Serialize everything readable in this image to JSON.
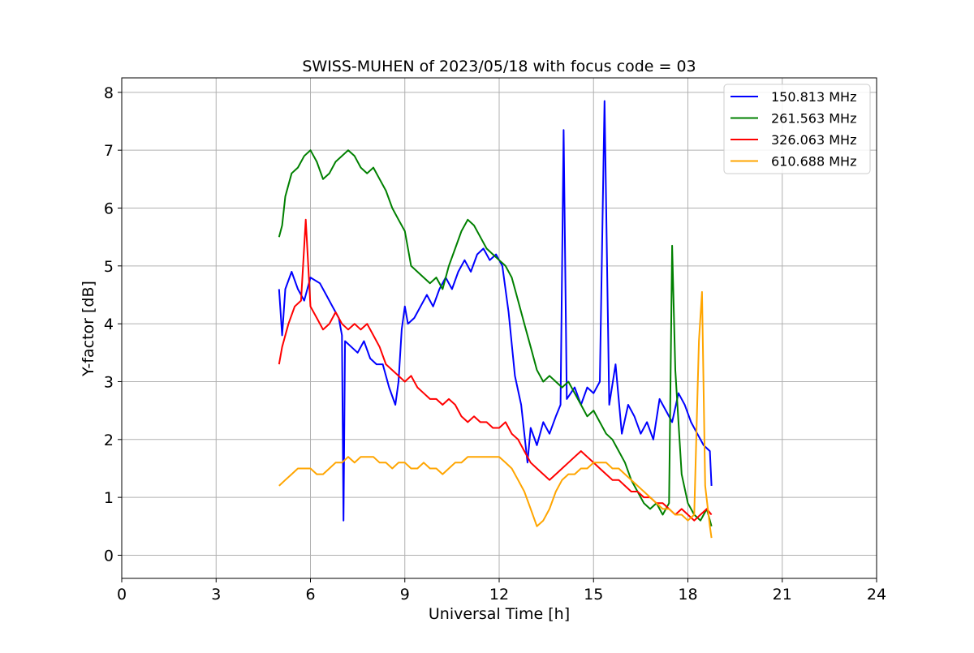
{
  "chart_data": {
    "type": "line",
    "title": "SWISS-MUHEN of 2023/05/18 with focus code = 03",
    "xlabel": "Universal Time [h]",
    "ylabel": "Y-factor [dB]",
    "xlim": [
      0,
      24
    ],
    "ylim": [
      -0.4,
      8.25
    ],
    "xticks": [
      0,
      3,
      6,
      9,
      12,
      15,
      18,
      21,
      24
    ],
    "yticks": [
      0,
      1,
      2,
      3,
      4,
      5,
      6,
      7,
      8
    ],
    "grid": true,
    "legend_position": "top-right",
    "series": [
      {
        "name": "150.813 MHz",
        "color": "#0000ff",
        "points": [
          [
            5.0,
            4.6
          ],
          [
            5.1,
            3.8
          ],
          [
            5.2,
            4.6
          ],
          [
            5.4,
            4.9
          ],
          [
            5.6,
            4.6
          ],
          [
            5.8,
            4.4
          ],
          [
            6.0,
            4.8
          ],
          [
            6.3,
            4.7
          ],
          [
            6.5,
            4.5
          ],
          [
            6.7,
            4.3
          ],
          [
            6.9,
            4.1
          ],
          [
            7.0,
            3.8
          ],
          [
            7.05,
            0.6
          ],
          [
            7.1,
            3.7
          ],
          [
            7.3,
            3.6
          ],
          [
            7.5,
            3.5
          ],
          [
            7.7,
            3.7
          ],
          [
            7.9,
            3.4
          ],
          [
            8.1,
            3.3
          ],
          [
            8.3,
            3.3
          ],
          [
            8.5,
            2.9
          ],
          [
            8.7,
            2.6
          ],
          [
            8.8,
            3.0
          ],
          [
            8.9,
            3.9
          ],
          [
            9.0,
            4.3
          ],
          [
            9.1,
            4.0
          ],
          [
            9.3,
            4.1
          ],
          [
            9.5,
            4.3
          ],
          [
            9.7,
            4.5
          ],
          [
            9.9,
            4.3
          ],
          [
            10.1,
            4.6
          ],
          [
            10.3,
            4.8
          ],
          [
            10.5,
            4.6
          ],
          [
            10.7,
            4.9
          ],
          [
            10.9,
            5.1
          ],
          [
            11.1,
            4.9
          ],
          [
            11.3,
            5.2
          ],
          [
            11.5,
            5.3
          ],
          [
            11.7,
            5.1
          ],
          [
            11.9,
            5.2
          ],
          [
            12.1,
            5.0
          ],
          [
            12.3,
            4.2
          ],
          [
            12.5,
            3.1
          ],
          [
            12.7,
            2.6
          ],
          [
            12.9,
            1.6
          ],
          [
            13.0,
            2.2
          ],
          [
            13.2,
            1.9
          ],
          [
            13.4,
            2.3
          ],
          [
            13.6,
            2.1
          ],
          [
            13.8,
            2.4
          ],
          [
            13.95,
            2.6
          ],
          [
            14.05,
            7.35
          ],
          [
            14.15,
            2.7
          ],
          [
            14.4,
            2.9
          ],
          [
            14.6,
            2.6
          ],
          [
            14.8,
            2.9
          ],
          [
            15.0,
            2.8
          ],
          [
            15.2,
            3.0
          ],
          [
            15.35,
            7.85
          ],
          [
            15.5,
            2.6
          ],
          [
            15.7,
            3.3
          ],
          [
            15.9,
            2.1
          ],
          [
            16.1,
            2.6
          ],
          [
            16.3,
            2.4
          ],
          [
            16.5,
            2.1
          ],
          [
            16.7,
            2.3
          ],
          [
            16.9,
            2.0
          ],
          [
            17.1,
            2.7
          ],
          [
            17.3,
            2.5
          ],
          [
            17.5,
            2.3
          ],
          [
            17.7,
            2.8
          ],
          [
            17.9,
            2.6
          ],
          [
            18.1,
            2.3
          ],
          [
            18.3,
            2.1
          ],
          [
            18.5,
            1.9
          ],
          [
            18.7,
            1.8
          ],
          [
            18.75,
            1.2
          ]
        ]
      },
      {
        "name": "261.563 MHz",
        "color": "#008000",
        "points": [
          [
            5.0,
            5.5
          ],
          [
            5.1,
            5.7
          ],
          [
            5.2,
            6.2
          ],
          [
            5.4,
            6.6
          ],
          [
            5.6,
            6.7
          ],
          [
            5.8,
            6.9
          ],
          [
            6.0,
            7.0
          ],
          [
            6.2,
            6.8
          ],
          [
            6.4,
            6.5
          ],
          [
            6.6,
            6.6
          ],
          [
            6.8,
            6.8
          ],
          [
            7.0,
            6.9
          ],
          [
            7.2,
            7.0
          ],
          [
            7.4,
            6.9
          ],
          [
            7.6,
            6.7
          ],
          [
            7.8,
            6.6
          ],
          [
            8.0,
            6.7
          ],
          [
            8.2,
            6.5
          ],
          [
            8.4,
            6.3
          ],
          [
            8.6,
            6.0
          ],
          [
            8.8,
            5.8
          ],
          [
            9.0,
            5.6
          ],
          [
            9.2,
            5.0
          ],
          [
            9.4,
            4.9
          ],
          [
            9.6,
            4.8
          ],
          [
            9.8,
            4.7
          ],
          [
            10.0,
            4.8
          ],
          [
            10.2,
            4.6
          ],
          [
            10.4,
            5.0
          ],
          [
            10.6,
            5.3
          ],
          [
            10.8,
            5.6
          ],
          [
            11.0,
            5.8
          ],
          [
            11.2,
            5.7
          ],
          [
            11.4,
            5.5
          ],
          [
            11.6,
            5.3
          ],
          [
            11.8,
            5.2
          ],
          [
            12.0,
            5.1
          ],
          [
            12.2,
            5.0
          ],
          [
            12.4,
            4.8
          ],
          [
            12.6,
            4.4
          ],
          [
            12.8,
            4.0
          ],
          [
            13.0,
            3.6
          ],
          [
            13.2,
            3.2
          ],
          [
            13.4,
            3.0
          ],
          [
            13.6,
            3.1
          ],
          [
            13.8,
            3.0
          ],
          [
            14.0,
            2.9
          ],
          [
            14.2,
            3.0
          ],
          [
            14.4,
            2.8
          ],
          [
            14.6,
            2.6
          ],
          [
            14.8,
            2.4
          ],
          [
            15.0,
            2.5
          ],
          [
            15.2,
            2.3
          ],
          [
            15.4,
            2.1
          ],
          [
            15.6,
            2.0
          ],
          [
            15.8,
            1.8
          ],
          [
            16.0,
            1.6
          ],
          [
            16.2,
            1.3
          ],
          [
            16.4,
            1.1
          ],
          [
            16.6,
            0.9
          ],
          [
            16.8,
            0.8
          ],
          [
            17.0,
            0.9
          ],
          [
            17.2,
            0.7
          ],
          [
            17.4,
            0.9
          ],
          [
            17.5,
            5.35
          ],
          [
            17.6,
            3.2
          ],
          [
            17.8,
            1.4
          ],
          [
            18.0,
            0.9
          ],
          [
            18.2,
            0.7
          ],
          [
            18.4,
            0.6
          ],
          [
            18.6,
            0.8
          ],
          [
            18.75,
            0.5
          ]
        ]
      },
      {
        "name": "326.063 MHz",
        "color": "#ff0000",
        "points": [
          [
            5.0,
            3.3
          ],
          [
            5.1,
            3.6
          ],
          [
            5.3,
            4.0
          ],
          [
            5.5,
            4.3
          ],
          [
            5.7,
            4.4
          ],
          [
            5.85,
            5.8
          ],
          [
            6.0,
            4.3
          ],
          [
            6.2,
            4.1
          ],
          [
            6.4,
            3.9
          ],
          [
            6.6,
            4.0
          ],
          [
            6.8,
            4.2
          ],
          [
            7.0,
            4.0
          ],
          [
            7.2,
            3.9
          ],
          [
            7.4,
            4.0
          ],
          [
            7.6,
            3.9
          ],
          [
            7.8,
            4.0
          ],
          [
            8.0,
            3.8
          ],
          [
            8.2,
            3.6
          ],
          [
            8.4,
            3.3
          ],
          [
            8.6,
            3.2
          ],
          [
            8.8,
            3.1
          ],
          [
            9.0,
            3.0
          ],
          [
            9.2,
            3.1
          ],
          [
            9.4,
            2.9
          ],
          [
            9.6,
            2.8
          ],
          [
            9.8,
            2.7
          ],
          [
            10.0,
            2.7
          ],
          [
            10.2,
            2.6
          ],
          [
            10.4,
            2.7
          ],
          [
            10.6,
            2.6
          ],
          [
            10.8,
            2.4
          ],
          [
            11.0,
            2.3
          ],
          [
            11.2,
            2.4
          ],
          [
            11.4,
            2.3
          ],
          [
            11.6,
            2.3
          ],
          [
            11.8,
            2.2
          ],
          [
            12.0,
            2.2
          ],
          [
            12.2,
            2.3
          ],
          [
            12.4,
            2.1
          ],
          [
            12.6,
            2.0
          ],
          [
            12.8,
            1.8
          ],
          [
            13.0,
            1.6
          ],
          [
            13.2,
            1.5
          ],
          [
            13.4,
            1.4
          ],
          [
            13.6,
            1.3
          ],
          [
            13.8,
            1.4
          ],
          [
            14.0,
            1.5
          ],
          [
            14.2,
            1.6
          ],
          [
            14.4,
            1.7
          ],
          [
            14.6,
            1.8
          ],
          [
            14.8,
            1.7
          ],
          [
            15.0,
            1.6
          ],
          [
            15.2,
            1.5
          ],
          [
            15.4,
            1.4
          ],
          [
            15.6,
            1.3
          ],
          [
            15.8,
            1.3
          ],
          [
            16.0,
            1.2
          ],
          [
            16.2,
            1.1
          ],
          [
            16.4,
            1.1
          ],
          [
            16.6,
            1.0
          ],
          [
            16.8,
            1.0
          ],
          [
            17.0,
            0.9
          ],
          [
            17.2,
            0.9
          ],
          [
            17.4,
            0.8
          ],
          [
            17.6,
            0.7
          ],
          [
            17.8,
            0.8
          ],
          [
            18.0,
            0.7
          ],
          [
            18.2,
            0.6
          ],
          [
            18.4,
            0.7
          ],
          [
            18.6,
            0.8
          ],
          [
            18.75,
            0.7
          ]
        ]
      },
      {
        "name": "610.688 MHz",
        "color": "#ffa500",
        "points": [
          [
            5.0,
            1.2
          ],
          [
            5.2,
            1.3
          ],
          [
            5.4,
            1.4
          ],
          [
            5.6,
            1.5
          ],
          [
            5.8,
            1.5
          ],
          [
            6.0,
            1.5
          ],
          [
            6.2,
            1.4
          ],
          [
            6.4,
            1.4
          ],
          [
            6.6,
            1.5
          ],
          [
            6.8,
            1.6
          ],
          [
            7.0,
            1.6
          ],
          [
            7.2,
            1.7
          ],
          [
            7.4,
            1.6
          ],
          [
            7.6,
            1.7
          ],
          [
            7.8,
            1.7
          ],
          [
            8.0,
            1.7
          ],
          [
            8.2,
            1.6
          ],
          [
            8.4,
            1.6
          ],
          [
            8.6,
            1.5
          ],
          [
            8.8,
            1.6
          ],
          [
            9.0,
            1.6
          ],
          [
            9.2,
            1.5
          ],
          [
            9.4,
            1.5
          ],
          [
            9.6,
            1.6
          ],
          [
            9.8,
            1.5
          ],
          [
            10.0,
            1.5
          ],
          [
            10.2,
            1.4
          ],
          [
            10.4,
            1.5
          ],
          [
            10.6,
            1.6
          ],
          [
            10.8,
            1.6
          ],
          [
            11.0,
            1.7
          ],
          [
            11.2,
            1.7
          ],
          [
            11.4,
            1.7
          ],
          [
            11.6,
            1.7
          ],
          [
            11.8,
            1.7
          ],
          [
            12.0,
            1.7
          ],
          [
            12.2,
            1.6
          ],
          [
            12.4,
            1.5
          ],
          [
            12.6,
            1.3
          ],
          [
            12.8,
            1.1
          ],
          [
            13.0,
            0.8
          ],
          [
            13.2,
            0.5
          ],
          [
            13.4,
            0.6
          ],
          [
            13.6,
            0.8
          ],
          [
            13.8,
            1.1
          ],
          [
            14.0,
            1.3
          ],
          [
            14.2,
            1.4
          ],
          [
            14.4,
            1.4
          ],
          [
            14.6,
            1.5
          ],
          [
            14.8,
            1.5
          ],
          [
            15.0,
            1.6
          ],
          [
            15.2,
            1.6
          ],
          [
            15.4,
            1.6
          ],
          [
            15.6,
            1.5
          ],
          [
            15.8,
            1.5
          ],
          [
            16.0,
            1.4
          ],
          [
            16.2,
            1.3
          ],
          [
            16.4,
            1.2
          ],
          [
            16.6,
            1.1
          ],
          [
            16.8,
            1.0
          ],
          [
            17.0,
            0.9
          ],
          [
            17.2,
            0.8
          ],
          [
            17.4,
            0.8
          ],
          [
            17.6,
            0.7
          ],
          [
            17.8,
            0.7
          ],
          [
            18.0,
            0.6
          ],
          [
            18.2,
            0.7
          ],
          [
            18.35,
            3.7
          ],
          [
            18.45,
            4.55
          ],
          [
            18.55,
            1.2
          ],
          [
            18.7,
            0.5
          ],
          [
            18.75,
            0.3
          ]
        ]
      }
    ]
  }
}
